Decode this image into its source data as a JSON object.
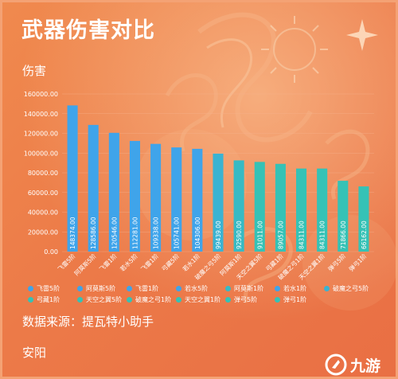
{
  "title": "武器伤害对比",
  "ylabel": "伤害",
  "source": "数据来源：提瓦特小助手",
  "city": "安阳",
  "watermark": {
    "text": "九游",
    "icon": "jiuyou-logo-icon"
  },
  "colors": {
    "background": "#ed7b48",
    "bar_blue": "#3fa4ea",
    "bar_teal": "#35c2b6",
    "text": "#ffffff",
    "grid": "#f6b28e"
  },
  "chart_data": {
    "type": "bar",
    "title": "武器伤害对比",
    "xlabel": "",
    "ylabel": "伤害",
    "categories": [
      "飞雷5阶",
      "阿莫斯5阶",
      "飞雷1阶",
      "若水5阶",
      "飞雷1阶",
      "弓藏5阶",
      "若水1阶",
      "破魔之弓5阶",
      "阿莫斯1阶",
      "天空之翼5阶",
      "弓藏1阶",
      "破魔之弓1阶",
      "天空之翼1阶",
      "弹弓5阶",
      "弹弓1阶"
    ],
    "values": [
      148374.0,
      128586.0,
      120546.0,
      112281.0,
      109338.0,
      105741.0,
      104306.0,
      99439.0,
      92590.0,
      91011.0,
      89057.0,
      84311.0,
      84311.0,
      71866.0,
      66162.0
    ],
    "value_labels": [
      "148374.00",
      "128586.00",
      "120546.00",
      "112281.00",
      "109338.00",
      "105741.00",
      "104306.00",
      "99439.00",
      "92590.00",
      "91011.00",
      "89057.00",
      "84311.00",
      "84311.00",
      "71866.00",
      "66162.00"
    ],
    "bar_colors": [
      "#3fa4ea",
      "#3fa4ea",
      "#3fa4ea",
      "#3fa4ea",
      "#3fa4ea",
      "#3fa4ea",
      "#3fa4ea",
      "#3ab3d2",
      "#37bac4",
      "#35c2b6",
      "#35c2b6",
      "#35c2b6",
      "#35c2b6",
      "#35c2b6",
      "#35c2b6"
    ],
    "yticks": [
      0,
      20000,
      40000,
      60000,
      80000,
      100000,
      120000,
      140000,
      160000
    ],
    "ytick_labels": [
      "0.00",
      "20000.00",
      "40000.00",
      "60000.00",
      "80000.00",
      "100000.00",
      "120000.00",
      "140000.00",
      "160000.00"
    ],
    "ylim": [
      0,
      160000
    ],
    "grid": true,
    "legend_position": "bottom",
    "legend": [
      {
        "label": "飞雷5阶",
        "color": "#3fa4ea"
      },
      {
        "label": "阿莫斯5阶",
        "color": "#3fa4ea"
      },
      {
        "label": "飞雷1阶",
        "color": "#3fa4ea"
      },
      {
        "label": "若水5阶",
        "color": "#3fa4ea"
      },
      {
        "label": "阿莫斯1阶",
        "color": "#37bac4"
      },
      {
        "label": "若水1阶",
        "color": "#3fa4ea"
      },
      {
        "label": "破魔之弓5阶",
        "color": "#3ab3d2"
      },
      {
        "label": "弓藏1阶",
        "color": "#35c2b6"
      },
      {
        "label": "天空之翼5阶",
        "color": "#35c2b6"
      },
      {
        "label": "破魔之弓1阶",
        "color": "#35c2b6"
      },
      {
        "label": "天空之翼1阶",
        "color": "#35c2b6"
      },
      {
        "label": "弹弓5阶",
        "color": "#35c2b6"
      },
      {
        "label": "弹弓1阶",
        "color": "#35c2b6"
      }
    ]
  }
}
